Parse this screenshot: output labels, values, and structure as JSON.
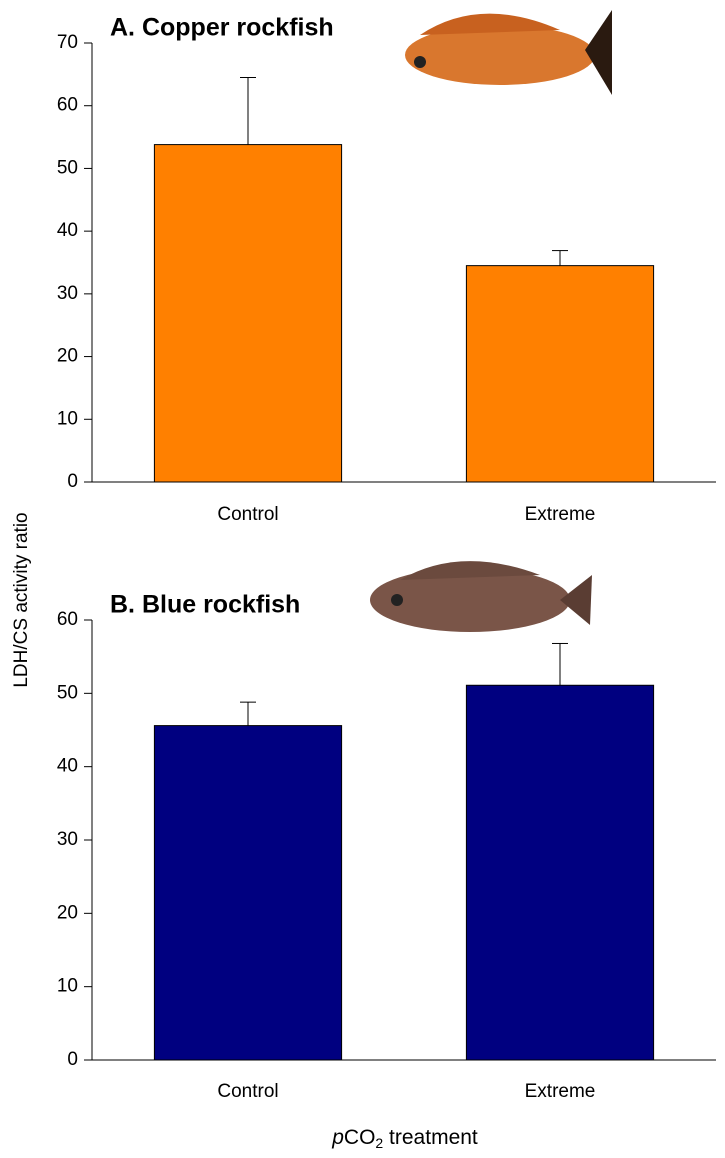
{
  "chart_data": [
    {
      "type": "bar",
      "title": "A. Copper rockfish",
      "ylabel": "LDH/CS activity ratio",
      "categories": [
        "Control",
        "Extreme"
      ],
      "values": [
        53.8,
        34.5
      ],
      "errors": [
        10.7,
        2.4
      ],
      "color": "#ff8000",
      "ylim": [
        0,
        70
      ],
      "yticks": [
        0,
        10,
        20,
        30,
        40,
        50,
        60,
        70
      ]
    },
    {
      "type": "bar",
      "title": "B. Blue rockfish",
      "xlabel": [
        "p",
        "CO",
        "2",
        " treatment"
      ],
      "categories": [
        "Control",
        "Extreme"
      ],
      "values": [
        45.6,
        51.1
      ],
      "errors": [
        3.2,
        5.7
      ],
      "color": "#000080",
      "ylim": [
        0,
        60
      ],
      "yticks": [
        0,
        10,
        20,
        30,
        40,
        50,
        60
      ]
    }
  ]
}
